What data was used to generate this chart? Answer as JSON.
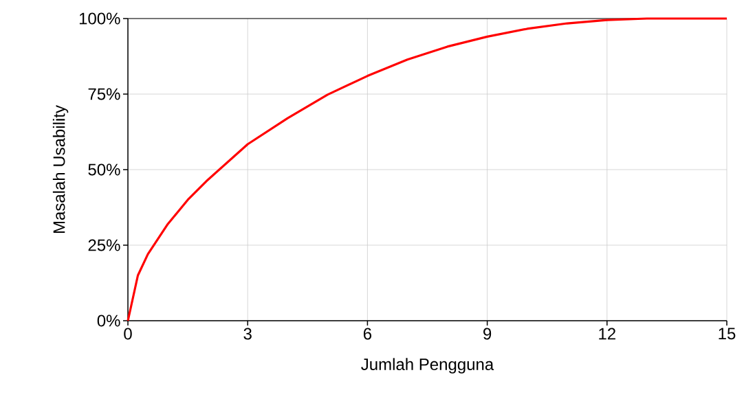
{
  "chart_data": {
    "type": "line",
    "xlabel": "Jumlah Pengguna",
    "ylabel": "Masalah Usability",
    "x": [
      0,
      0.25,
      0.5,
      1,
      1.5,
      2,
      3,
      4,
      5,
      6,
      7,
      8,
      9,
      10,
      11,
      12,
      13,
      14,
      15
    ],
    "series": [
      {
        "color": "#ff0000",
        "values": [
          0,
          15,
          22,
          32,
          40,
          46.6,
          58.4,
          67,
          74.8,
          81,
          86.4,
          90.7,
          94,
          96.6,
          98.4,
          99.5,
          100,
          100,
          100
        ]
      }
    ],
    "xlim": [
      0,
      15
    ],
    "xticks": [
      0,
      3,
      6,
      9,
      12,
      15
    ],
    "ylim": [
      0,
      100
    ],
    "yticks": [
      {
        "value": 0,
        "label": "0%"
      },
      {
        "value": 25,
        "label": "25%"
      },
      {
        "value": 50,
        "label": "50%"
      },
      {
        "value": 75,
        "label": "75%"
      },
      {
        "value": 100,
        "label": "100%"
      }
    ],
    "grid": true,
    "marker": "none",
    "line_style": "solid"
  }
}
